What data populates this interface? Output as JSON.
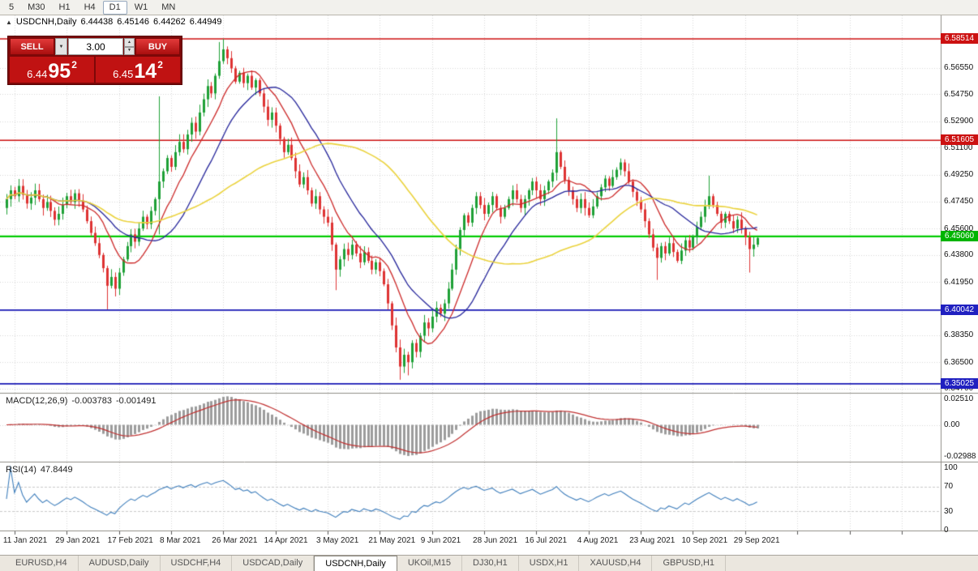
{
  "icons": {
    "collapse": "▲",
    "dropdown": "▼",
    "spin_up": "▲",
    "spin_down": "▼"
  },
  "toolbar": {
    "periods": [
      "5",
      "M30",
      "H1",
      "H4",
      "D1",
      "W1",
      "MN"
    ],
    "active_period": "D1"
  },
  "chart_header": {
    "symbol": "USDCNH,Daily",
    "open": "6.44438",
    "high": "6.45146",
    "low": "6.44262",
    "close": "6.44949"
  },
  "trade_panel": {
    "sell_label": "SELL",
    "buy_label": "BUY",
    "volume": "3.00",
    "bid": {
      "main": "6.44",
      "pips": "95",
      "sup": "2"
    },
    "ask": {
      "main": "6.45",
      "pips": "14",
      "sup": "2"
    }
  },
  "macd_header": {
    "title": "MACD(12,26,9)",
    "value1": "-0.003783",
    "value2": "-0.001491"
  },
  "rsi_header": {
    "title": "RSI(14)",
    "value": "47.8449"
  },
  "tabs": {
    "items": [
      {
        "label": "EURUSD,H4",
        "active": false
      },
      {
        "label": "AUDUSD,Daily",
        "active": false
      },
      {
        "label": "USDCHF,H4",
        "active": false
      },
      {
        "label": "USDCAD,Daily",
        "active": false
      },
      {
        "label": "USDCNH,Daily",
        "active": true
      },
      {
        "label": "UKOil,M15",
        "active": false
      },
      {
        "label": "DJ30,H1",
        "active": false
      },
      {
        "label": "USDX,H1",
        "active": false
      },
      {
        "label": "XAUUSD,H4",
        "active": false
      },
      {
        "label": "GBPUSD,H1",
        "active": false
      }
    ]
  },
  "chart_data": {
    "type": "candlestick",
    "symbol": "USDCNH",
    "timeframe": "Daily",
    "title": "USDCNH,Daily",
    "ohlc_display": {
      "open": "6.44438",
      "high": "6.45146",
      "low": "6.44262",
      "close": "6.44949"
    },
    "ylim": [
      6.344,
      6.601
    ],
    "first_open": 6.47,
    "closes": [
      6.476,
      6.482,
      6.478,
      6.485,
      6.479,
      6.473,
      6.477,
      6.482,
      6.476,
      6.47,
      6.474,
      6.468,
      6.462,
      6.466,
      6.472,
      6.478,
      6.474,
      6.48,
      6.475,
      6.469,
      6.461,
      6.453,
      6.446,
      6.438,
      6.429,
      6.417,
      6.423,
      6.415,
      6.426,
      6.435,
      6.444,
      6.452,
      6.447,
      6.456,
      6.464,
      6.459,
      6.468,
      6.476,
      6.488,
      6.495,
      6.504,
      6.498,
      6.508,
      6.515,
      6.51,
      6.52,
      6.528,
      6.522,
      6.535,
      6.544,
      6.553,
      6.548,
      6.56,
      6.57,
      6.578,
      6.572,
      6.565,
      6.556,
      6.562,
      6.555,
      6.56,
      6.552,
      6.557,
      6.548,
      6.539,
      6.53,
      6.535,
      6.526,
      6.517,
      6.508,
      6.513,
      6.504,
      6.495,
      6.486,
      6.491,
      6.482,
      6.473,
      6.478,
      6.469,
      6.464,
      6.46,
      6.445,
      6.428,
      6.435,
      6.442,
      6.438,
      6.445,
      6.439,
      6.433,
      6.44,
      6.434,
      6.428,
      6.433,
      6.427,
      6.418,
      6.405,
      6.39,
      6.375,
      6.362,
      6.37,
      6.365,
      6.378,
      6.372,
      6.383,
      6.392,
      6.388,
      6.396,
      6.402,
      6.398,
      6.405,
      6.415,
      6.428,
      6.442,
      6.455,
      6.465,
      6.46,
      6.47,
      6.478,
      6.472,
      6.466,
      6.472,
      6.478,
      6.47,
      6.464,
      6.47,
      6.476,
      6.482,
      6.476,
      6.47,
      6.476,
      6.482,
      6.488,
      6.482,
      6.476,
      6.482,
      6.488,
      6.494,
      6.508,
      6.498,
      6.489,
      6.482,
      6.476,
      6.47,
      6.476,
      6.47,
      6.465,
      6.471,
      6.478,
      6.484,
      6.49,
      6.485,
      6.491,
      6.496,
      6.501,
      6.495,
      6.488,
      6.481,
      6.475,
      6.469,
      6.461,
      6.452,
      6.443,
      6.436,
      6.444,
      6.439,
      6.446,
      6.44,
      6.434,
      6.441,
      6.448,
      6.443,
      6.45,
      6.457,
      6.464,
      6.471,
      6.478,
      6.472,
      6.466,
      6.46,
      6.466,
      6.461,
      6.456,
      6.462,
      6.456,
      6.45,
      6.442,
      6.445,
      6.4495
    ],
    "wick_overrides": {
      "25": {
        "l": 6.401
      },
      "38": {
        "h": 6.546,
        "l": 6.452
      },
      "53": {
        "h": 6.583
      },
      "54": {
        "h": 6.5851
      },
      "55": {
        "h": 6.58
      },
      "82": {
        "l": 6.414
      },
      "98": {
        "l": 6.353
      },
      "100": {
        "l": 6.356
      },
      "137": {
        "h": 6.531
      },
      "162": {
        "l": 6.421
      },
      "175": {
        "h": 6.492
      },
      "185": {
        "l": 6.426
      }
    },
    "up_color": "#1ea036",
    "down_color": "#de3232",
    "x_ticks": [
      {
        "index": 2,
        "label": "11 Jan 2021"
      },
      {
        "index": 15,
        "label": "29 Jan 2021"
      },
      {
        "index": 28,
        "label": "17 Feb 2021"
      },
      {
        "index": 41,
        "label": "8 Mar 2021"
      },
      {
        "index": 54,
        "label": "26 Mar 2021"
      },
      {
        "index": 67,
        "label": "14 Apr 2021"
      },
      {
        "index": 80,
        "label": "3 May 2021"
      },
      {
        "index": 93,
        "label": "21 May 2021"
      },
      {
        "index": 106,
        "label": "9 Jun 2021"
      },
      {
        "index": 119,
        "label": "28 Jun 2021"
      },
      {
        "index": 132,
        "label": "16 Jul 2021"
      },
      {
        "index": 145,
        "label": "4 Aug 2021"
      },
      {
        "index": 158,
        "label": "23 Aug 2021"
      },
      {
        "index": 171,
        "label": "10 Sep 2021"
      },
      {
        "index": 184,
        "label": "29 Sep 2021"
      }
    ],
    "future_tick_indices": [
      197,
      210,
      223
    ],
    "y_axis": {
      "plain_labels": [
        {
          "text": "6.56550",
          "value": 6.5655
        },
        {
          "text": "6.54750",
          "value": 6.5475
        },
        {
          "text": "6.52900",
          "value": 6.529
        },
        {
          "text": "6.51100",
          "value": 6.511
        },
        {
          "text": "6.49250",
          "value": 6.4925
        },
        {
          "text": "6.47450",
          "value": 6.4745
        },
        {
          "text": "6.45600",
          "value": 6.456
        },
        {
          "text": "6.43800",
          "value": 6.438
        },
        {
          "text": "6.41950",
          "value": 6.4195
        },
        {
          "text": "6.38350",
          "value": 6.3835
        },
        {
          "text": "6.36500",
          "value": 6.365
        },
        {
          "text": "6.34700",
          "value": 6.347
        }
      ],
      "badges": [
        {
          "text": "6.58514",
          "value": 6.58514,
          "color": "#cc1111"
        },
        {
          "text": "6.51605",
          "value": 6.51605,
          "color": "#cc1111"
        },
        {
          "text": "6.45060",
          "value": 6.4506,
          "color": "#00b400"
        },
        {
          "text": "6.40042",
          "value": 6.40042,
          "color": "#2020c0"
        },
        {
          "text": "6.35025",
          "value": 6.35025,
          "color": "#2020c0"
        }
      ]
    },
    "levels": [
      {
        "value": 6.58514,
        "color": "#cc1111",
        "width": 1.4
      },
      {
        "value": 6.51605,
        "color": "#cc1111",
        "width": 1.4
      },
      {
        "value": 6.4506,
        "color": "#00cc00",
        "width": 2.2
      },
      {
        "value": 6.40042,
        "color": "#1818b4",
        "width": 1.8
      },
      {
        "value": 6.35025,
        "color": "#1818b4",
        "width": 1.8
      }
    ],
    "moving_averages": [
      {
        "period": 10,
        "color": "#cc2a2a",
        "width": 1.3
      },
      {
        "period": 20,
        "color": "#24249a",
        "width": 1.3
      },
      {
        "period": 50,
        "color": "#ead23c",
        "width": 1.6
      }
    ],
    "macd": {
      "fast": 12,
      "slow": 26,
      "signal": 9,
      "histogram_color": "#9c9c9c",
      "signal_color": "#c03030",
      "scale": [
        {
          "text": "0.02510",
          "value": 0.0251
        },
        {
          "text": "0.00",
          "value": 0
        },
        {
          "text": "-0.02988",
          "value": -0.02988
        }
      ]
    },
    "rsi": {
      "period": 14,
      "color": "#3d7dbb",
      "levels": [
        70,
        30
      ],
      "scale": [
        {
          "text": "100",
          "value": 100
        },
        {
          "text": "70",
          "value": 70
        },
        {
          "text": "30",
          "value": 30
        },
        {
          "text": "0",
          "value": 0
        }
      ]
    }
  }
}
